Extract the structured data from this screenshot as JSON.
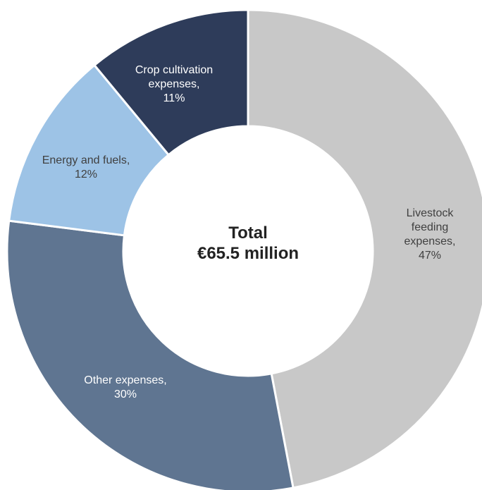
{
  "chart_data": {
    "type": "donut",
    "categories": [
      "Livestock feeding expenses,",
      "Other expenses,",
      "Energy and fuels,",
      "Crop cultivation expenses,"
    ],
    "values": [
      47,
      30,
      12,
      11
    ],
    "value_labels": [
      "47%",
      "30%",
      "12%",
      "11%"
    ],
    "colors": [
      "#c8c8c8",
      "#5f7591",
      "#9dc3e6",
      "#2e3c5a"
    ],
    "center_label": [
      "Total",
      "€65.5 million"
    ]
  }
}
